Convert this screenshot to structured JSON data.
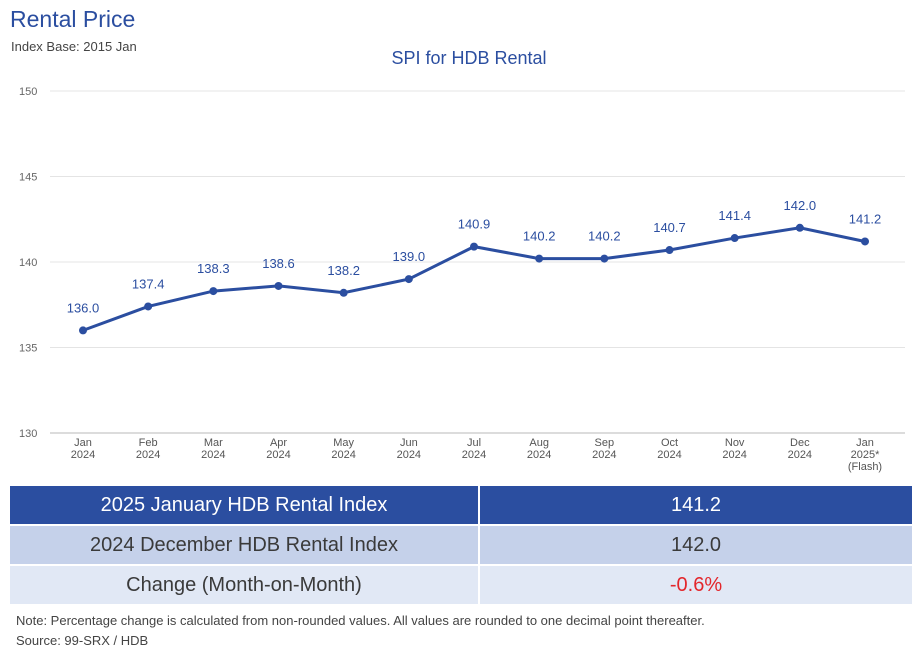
{
  "page": {
    "title": "Rental Price",
    "subtitle": "Index Base: 2015 Jan"
  },
  "chart_data": {
    "type": "line",
    "title": "SPI for HDB Rental",
    "xlabel": "",
    "ylabel": "",
    "ylim": [
      130,
      150
    ],
    "yticks": [
      130,
      135,
      140,
      145,
      150
    ],
    "grid": true,
    "categories": [
      [
        "Jan",
        "2024"
      ],
      [
        "Feb",
        "2024"
      ],
      [
        "Mar",
        "2024"
      ],
      [
        "Apr",
        "2024"
      ],
      [
        "May",
        "2024"
      ],
      [
        "Jun",
        "2024"
      ],
      [
        "Jul",
        "2024"
      ],
      [
        "Aug",
        "2024"
      ],
      [
        "Sep",
        "2024"
      ],
      [
        "Oct",
        "2024"
      ],
      [
        "Nov",
        "2024"
      ],
      [
        "Dec",
        "2024"
      ],
      [
        "Jan",
        "2025*",
        "(Flash)"
      ]
    ],
    "series": [
      {
        "values": [
          136.0,
          137.4,
          138.3,
          138.6,
          138.2,
          139.0,
          140.9,
          140.2,
          140.2,
          140.7,
          141.4,
          142.0,
          141.2
        ],
        "labels": [
          "136.0",
          "137.4",
          "138.3",
          "138.6",
          "138.2",
          "139.0",
          "140.9",
          "140.2",
          "140.2",
          "140.7",
          "141.4",
          "142.0",
          "141.2"
        ],
        "color": "#2b4ea0"
      }
    ]
  },
  "summary": {
    "rows": [
      {
        "label": "2025 January HDB Rental Index",
        "value": "141.2"
      },
      {
        "label": "2024 December HDB Rental Index",
        "value": "142.0"
      },
      {
        "label": "Change (Month-on-Month)",
        "value": "-0.6%"
      }
    ]
  },
  "footer": {
    "note": "Note: Percentage change is calculated from non-rounded values.  All values are rounded to one decimal point thereafter.",
    "source": "Source: 99-SRX / HDB"
  },
  "colors": {
    "accent": "#2b4ea0",
    "negative": "#e3262b",
    "row_light": "#c5d1ea",
    "row_lighter": "#e1e8f5"
  }
}
